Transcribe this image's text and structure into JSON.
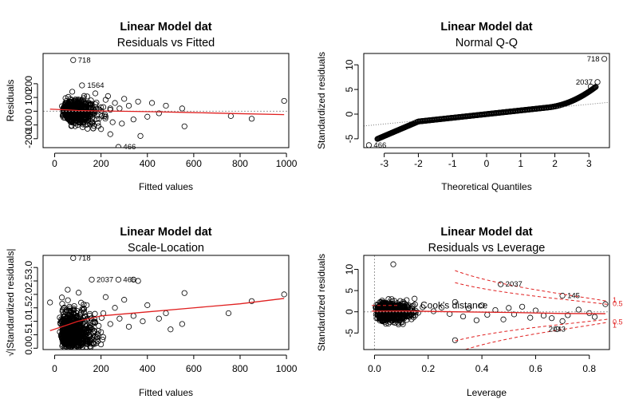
{
  "chart_data": [
    {
      "type": "scatter",
      "title": "Linear Model dat",
      "subtitle": "Residuals vs Fitted",
      "xlabel": "Fitted values",
      "ylabel": "Residuals",
      "xlim": [
        -50,
        1010
      ],
      "ylim": [
        -265,
        420
      ],
      "xticks": [
        0,
        200,
        400,
        600,
        800,
        1000
      ],
      "yticks": [
        -200,
        -100,
        0,
        100,
        200
      ],
      "ytick_labels": [
        "-200",
        "-100",
        "0",
        "100",
        "200"
      ],
      "point_labels": [
        {
          "text": "718",
          "x": 80,
          "y": 372
        },
        {
          "text": "1564",
          "x": 120,
          "y": 188
        },
        {
          "text": "466",
          "x": 275,
          "y": -260
        }
      ],
      "sample_points": [
        [
          80,
          372
        ],
        [
          118,
          188
        ],
        [
          275,
          -260
        ],
        [
          990,
          75
        ],
        [
          850,
          -55
        ],
        [
          760,
          -35
        ],
        [
          560,
          -110
        ],
        [
          550,
          20
        ],
        [
          480,
          40
        ],
        [
          450,
          -15
        ],
        [
          420,
          60
        ],
        [
          400,
          -40
        ],
        [
          370,
          -180
        ],
        [
          360,
          70
        ],
        [
          340,
          -60
        ],
        [
          320,
          40
        ],
        [
          300,
          90
        ],
        [
          290,
          -90
        ],
        [
          280,
          20
        ],
        [
          260,
          60
        ],
        [
          250,
          -80
        ],
        [
          240,
          10
        ],
        [
          230,
          110
        ],
        [
          220,
          -40
        ],
        [
          210,
          30
        ],
        [
          200,
          -130
        ]
      ],
      "smooth_line": [
        [
          -20,
          15
        ],
        [
          50,
          10
        ],
        [
          100,
          5
        ],
        [
          200,
          2
        ],
        [
          400,
          -3
        ],
        [
          600,
          -10
        ],
        [
          800,
          -18
        ],
        [
          990,
          -25
        ]
      ],
      "grid": false
    },
    {
      "type": "scatter",
      "title": "Linear Model dat",
      "subtitle": "Normal Q-Q",
      "xlabel": "Theoretical Quantiles",
      "ylabel": "Standardized residuals",
      "xlim": [
        -3.6,
        3.6
      ],
      "ylim": [
        -6.8,
        12.3
      ],
      "xticks": [
        -3,
        -2,
        -1,
        0,
        1,
        2,
        3
      ],
      "xtick_labels": [
        "-3",
        "-2",
        "-1",
        "0",
        "1",
        "2",
        "3"
      ],
      "yticks": [
        -5,
        0,
        5,
        10
      ],
      "ytick_labels": [
        "-5",
        "0",
        "5",
        "10"
      ],
      "point_labels": [
        {
          "text": "718",
          "x": 3.45,
          "y": 11.2
        },
        {
          "text": "2037",
          "x": 3.25,
          "y": 6.5
        },
        {
          "text": "466",
          "x": -3.45,
          "y": -6.3
        }
      ],
      "reference_line": [
        [
          -3.6,
          -2.4
        ],
        [
          3.6,
          2.4
        ]
      ],
      "grid": false
    },
    {
      "type": "scatter",
      "title": "Linear Model dat",
      "subtitle": "Scale-Location",
      "xlabel": "Fitted values",
      "ylabel": "√|Standardized residuals|",
      "xlim": [
        -50,
        1010
      ],
      "ylim": [
        -0.05,
        3.45
      ],
      "xticks": [
        0,
        200,
        400,
        600,
        800,
        1000
      ],
      "yticks": [
        0.0,
        0.5,
        1.0,
        1.5,
        2.0,
        2.5,
        3.0
      ],
      "ytick_labels": [
        "0.0",
        "0.5",
        "1.0",
        "1.5",
        "2.0",
        "2.5",
        "3.0"
      ],
      "point_labels": [
        {
          "text": "718",
          "x": 80,
          "y": 3.35
        },
        {
          "text": "2037",
          "x": 160,
          "y": 2.55
        },
        {
          "text": "466",
          "x": 275,
          "y": 2.55
        }
      ],
      "sample_points": [
        [
          990,
          2.0
        ],
        [
          850,
          1.75
        ],
        [
          750,
          1.3
        ],
        [
          560,
          2.05
        ],
        [
          550,
          0.9
        ],
        [
          500,
          0.7
        ],
        [
          480,
          1.3
        ],
        [
          450,
          1.1
        ],
        [
          400,
          1.6
        ],
        [
          380,
          1.0
        ],
        [
          360,
          2.5
        ],
        [
          340,
          1.2
        ],
        [
          320,
          0.8
        ],
        [
          300,
          1.8
        ],
        [
          280,
          1.1
        ],
        [
          260,
          1.5
        ],
        [
          240,
          0.9
        ],
        [
          220,
          1.9
        ],
        [
          210,
          1.3
        ],
        [
          200,
          0.6
        ],
        [
          -20,
          1.7
        ],
        [
          340,
          2.55
        ]
      ],
      "smooth_line": [
        [
          -20,
          0.65
        ],
        [
          50,
          0.85
        ],
        [
          100,
          1.0
        ],
        [
          150,
          1.1
        ],
        [
          200,
          1.2
        ],
        [
          400,
          1.35
        ],
        [
          600,
          1.5
        ],
        [
          800,
          1.65
        ],
        [
          990,
          1.85
        ]
      ],
      "grid": false
    },
    {
      "type": "scatter",
      "title": "Linear Model dat",
      "subtitle": "Residuals vs Leverage",
      "xlabel": "Leverage",
      "ylabel": "Standardized residuals",
      "xlim": [
        -0.04,
        0.875
      ],
      "ylim": [
        -8.9,
        13.3
      ],
      "xticks": [
        0.0,
        0.2,
        0.4,
        0.6,
        0.8
      ],
      "xtick_labels": [
        "0.0",
        "0.2",
        "0.4",
        "0.6",
        "0.8"
      ],
      "yticks": [
        -5,
        0,
        5,
        10
      ],
      "ytick_labels": [
        "-5",
        "0",
        "5",
        "10"
      ],
      "point_labels": [
        {
          "text": "2037",
          "x": 0.47,
          "y": 6.5
        },
        {
          "text": "145",
          "x": 0.7,
          "y": 3.8
        },
        {
          "text": "2043",
          "x": 0.68,
          "y": -4.1
        }
      ],
      "cook_label": "Cook's distance",
      "cook_contours": [
        "1",
        "0.5",
        "0.5",
        "1"
      ],
      "sample_points": [
        [
          0.07,
          11.2
        ],
        [
          0.47,
          6.5
        ],
        [
          0.7,
          3.8
        ],
        [
          0.86,
          1.8
        ],
        [
          0.82,
          -1.2
        ],
        [
          0.8,
          -0.3
        ],
        [
          0.76,
          0.5
        ],
        [
          0.72,
          -0.8
        ],
        [
          0.7,
          -2.2
        ],
        [
          0.68,
          -4.1
        ],
        [
          0.66,
          -1.5
        ],
        [
          0.63,
          -0.9
        ],
        [
          0.6,
          0.3
        ],
        [
          0.58,
          -1.4
        ],
        [
          0.55,
          1.2
        ],
        [
          0.52,
          -0.6
        ],
        [
          0.5,
          0.9
        ],
        [
          0.48,
          -1.8
        ],
        [
          0.45,
          0.4
        ],
        [
          0.42,
          -0.7
        ],
        [
          0.4,
          1.5
        ],
        [
          0.38,
          -2.0
        ],
        [
          0.35,
          0.8
        ],
        [
          0.33,
          -1.1
        ],
        [
          0.3,
          2.3
        ],
        [
          0.3,
          -6.7
        ],
        [
          0.28,
          -0.5
        ],
        [
          0.25,
          1.0
        ]
      ],
      "smooth_line": [
        [
          -0.01,
          0.15
        ],
        [
          0.1,
          0.2
        ],
        [
          0.3,
          0.0
        ],
        [
          0.5,
          -0.15
        ],
        [
          0.7,
          -0.4
        ],
        [
          0.86,
          -0.45
        ]
      ],
      "grid": false
    }
  ]
}
